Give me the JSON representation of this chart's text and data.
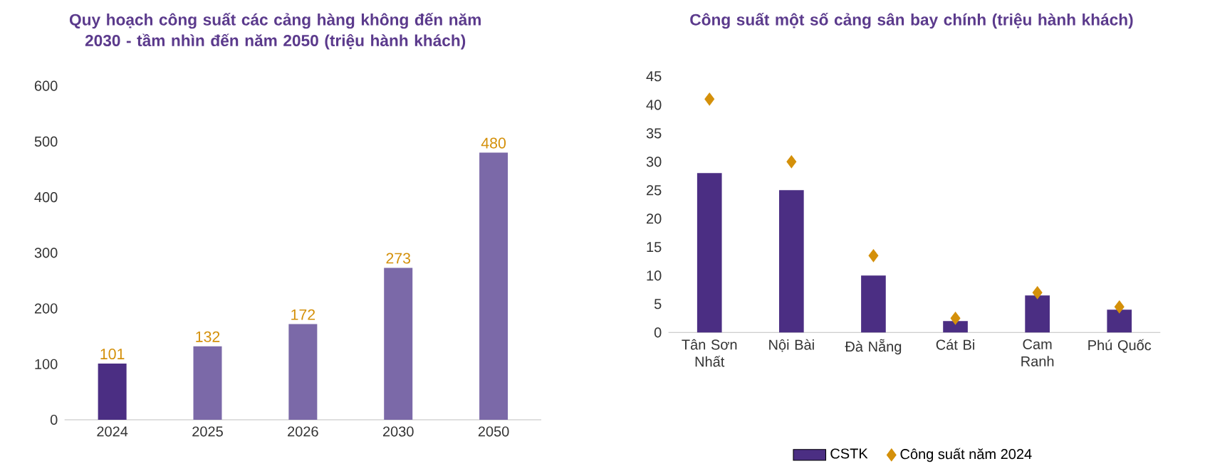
{
  "chart_data": [
    {
      "type": "bar",
      "title": "Quy hoạch công suất các cảng hàng không đến năm 2030 -  tầm nhìn đến năm 2050 (triệu hành khách)",
      "categories": [
        "2024",
        "2025",
        "2026",
        "2030",
        "2050"
      ],
      "values": [
        101,
        132,
        172,
        273,
        480
      ],
      "colors": [
        "#4b2e83",
        "#7b69a8",
        "#7b69a8",
        "#7b69a8",
        "#7b69a8"
      ],
      "ylim": [
        0,
        600
      ],
      "yticks": [
        0,
        100,
        200,
        300,
        400,
        500,
        600
      ],
      "data_labels": true,
      "grid": false
    },
    {
      "type": "bar",
      "title": "Công suất một số cảng sân bay chính (triệu hành khách)",
      "categories": [
        "Tân Sơn Nhất",
        "Nội Bài",
        "Đà Nẵng",
        "Cát Bi",
        "Cam Ranh",
        "Phú Quốc"
      ],
      "series": [
        {
          "name": "CSTK",
          "color": "#4b2e83",
          "values": [
            28,
            25,
            10,
            2,
            6.5,
            4
          ]
        },
        {
          "name": "Công suất năm 2024",
          "type": "scatter",
          "marker": "diamond",
          "color": "#d4900a",
          "values": [
            41,
            30,
            13.5,
            2.5,
            7,
            4.5
          ]
        }
      ],
      "ylim": [
        0,
        45
      ],
      "yticks": [
        0,
        5,
        10,
        15,
        20,
        25,
        30,
        35,
        40,
        45
      ],
      "legend": "bottom",
      "grid": false
    }
  ]
}
